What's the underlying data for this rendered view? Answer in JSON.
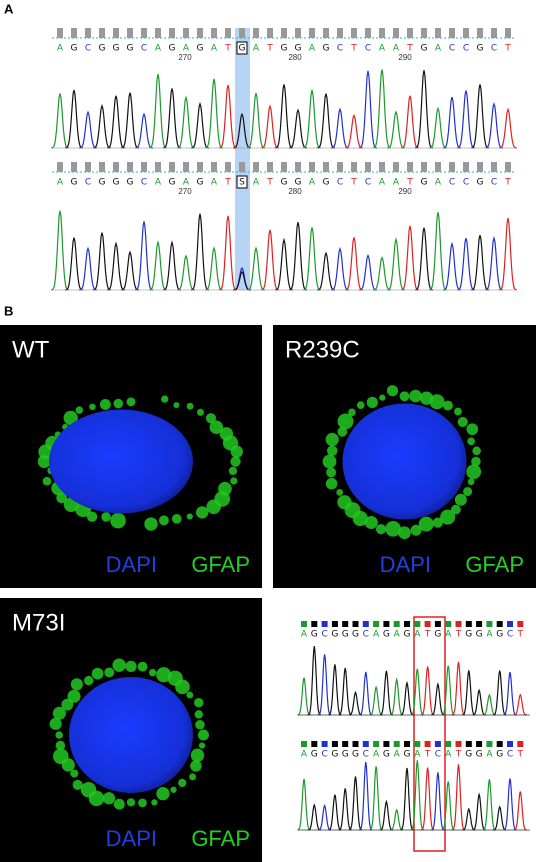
{
  "panel_a": {
    "label": "A",
    "traces": [
      {
        "bases": [
          "A",
          "G",
          "C",
          "G",
          "G",
          "G",
          "C",
          "A",
          "G",
          "A",
          "G",
          "A",
          "T",
          "G",
          "A",
          "T",
          "G",
          "G",
          "A",
          "G",
          "C",
          "T",
          "C",
          "A",
          "A",
          "T",
          "G",
          "A",
          "C",
          "C",
          "G",
          "C",
          "T"
        ],
        "positions": [
          "270",
          "280",
          "290"
        ]
      },
      {
        "bases": [
          "A",
          "G",
          "C",
          "G",
          "G",
          "G",
          "C",
          "A",
          "G",
          "A",
          "G",
          "A",
          "T",
          "S",
          "A",
          "T",
          "G",
          "G",
          "A",
          "G",
          "C",
          "T",
          "C",
          "A",
          "A",
          "T",
          "G",
          "A",
          "C",
          "C",
          "G",
          "C",
          "T"
        ],
        "positions": [
          "270",
          "280",
          "290"
        ]
      }
    ]
  },
  "panel_b": {
    "label": "B",
    "images": [
      {
        "title": "WT",
        "stains": [
          "DAPI",
          "GFAP"
        ]
      },
      {
        "title": "R239C",
        "stains": [
          "DAPI",
          "GFAP"
        ]
      },
      {
        "title": "M73I",
        "stains": [
          "DAPI",
          "GFAP"
        ]
      }
    ],
    "traces": [
      {
        "bases": [
          "A",
          "G",
          "C",
          "G",
          "G",
          "G",
          "C",
          "A",
          "G",
          "A",
          "G",
          "A",
          "T",
          "G",
          "A",
          "T",
          "G",
          "G",
          "A",
          "G",
          "C",
          "T"
        ]
      },
      {
        "bases": [
          "A",
          "G",
          "C",
          "G",
          "G",
          "G",
          "C",
          "A",
          "G",
          "A",
          "G",
          "A",
          "T",
          "C",
          "A",
          "T",
          "G",
          "G",
          "A",
          "G",
          "C",
          "T"
        ]
      }
    ]
  }
}
